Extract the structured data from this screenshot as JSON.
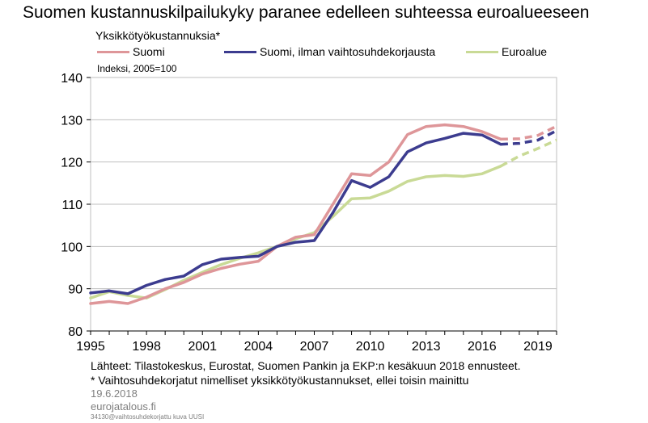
{
  "header": {
    "title": "Suomen kustannuskilpailukyky paranee edelleen suhteessa euroalueeseen",
    "subtitle": "Yksikkötyökustannuksia*",
    "unit": "Indeksi, 2005=100"
  },
  "colors": {
    "suomi": "#DE9699",
    "suomi_ilman": "#3C3C8F",
    "euroalue": "#C9DA96",
    "grid": "#BFBFBF",
    "axis": "#000000"
  },
  "chart_data": {
    "type": "line",
    "xlim": [
      1995,
      2020
    ],
    "ylim": [
      80,
      140
    ],
    "x_ticks": [
      "1995",
      "1998",
      "2001",
      "2004",
      "2007",
      "2010",
      "2013",
      "2016",
      "2019"
    ],
    "y_ticks": [
      "80",
      "90",
      "100",
      "110",
      "120",
      "130",
      "140"
    ],
    "grid": true,
    "legend_position": "top",
    "forecast_start": 2017,
    "x": [
      1995,
      1996,
      1997,
      1998,
      1999,
      2000,
      2001,
      2002,
      2003,
      2004,
      2005,
      2006,
      2007,
      2008,
      2009,
      2010,
      2011,
      2012,
      2013,
      2014,
      2015,
      2016,
      2017,
      2018,
      2019,
      2020
    ],
    "series": [
      {
        "name": "Suomi",
        "color": "#DE9699",
        "values": [
          86.5,
          87.0,
          86.5,
          88.0,
          90.0,
          91.5,
          93.5,
          94.8,
          95.8,
          96.5,
          100.0,
          102.2,
          102.8,
          110.0,
          117.2,
          116.8,
          120.0,
          126.5,
          128.4,
          128.8,
          128.4,
          127.2,
          125.4,
          125.5,
          126.3,
          128.5
        ]
      },
      {
        "name": "Suomi, ilman vaihtosuhdekorjausta",
        "color": "#3C3C8F",
        "values": [
          89.0,
          89.5,
          88.8,
          90.8,
          92.2,
          93.0,
          95.7,
          97.0,
          97.4,
          97.7,
          100.0,
          101.0,
          101.4,
          108.0,
          115.6,
          114.0,
          116.5,
          122.4,
          124.5,
          125.6,
          126.8,
          126.4,
          124.2,
          124.4,
          125.2,
          127.4
        ]
      },
      {
        "name": "Euroalue",
        "color": "#C9DA96",
        "values": [
          87.8,
          89.3,
          88.4,
          87.8,
          89.8,
          92.0,
          93.9,
          95.7,
          97.2,
          98.5,
          100.0,
          101.8,
          103.3,
          107.1,
          111.3,
          111.5,
          113.1,
          115.4,
          116.5,
          116.8,
          116.6,
          117.2,
          119.0,
          121.4,
          123.2,
          125.2
        ]
      }
    ]
  },
  "sources": {
    "line1": "Lähteet: Tilastokeskus, Eurostat, Suomen Pankin ja EKP:n kesäkuun 2018 ennusteet.",
    "line2": "* Vaihtosuhdekorjatut nimelliset yksikkötyökustannukset, ellei toisin mainittu",
    "date": "19.6.2018",
    "site": "eurojatalous.fi",
    "code": "34130@vaihtosuhdekorjattu  kuva  UUSI"
  }
}
